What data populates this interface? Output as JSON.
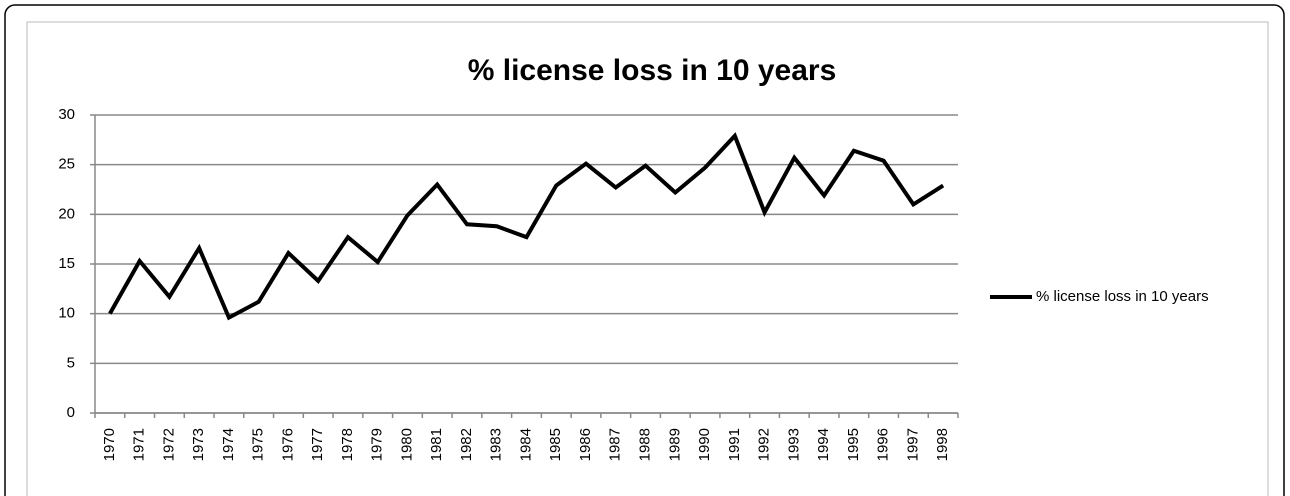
{
  "chart_data": {
    "type": "line",
    "title": "% license loss in 10 years",
    "categories": [
      "1970",
      "1971",
      "1972",
      "1973",
      "1974",
      "1975",
      "1976",
      "1977",
      "1978",
      "1979",
      "1980",
      "1981",
      "1982",
      "1983",
      "1984",
      "1985",
      "1986",
      "1987",
      "1988",
      "1989",
      "1990",
      "1991",
      "1992",
      "1993",
      "1994",
      "1995",
      "1996",
      "1997",
      "1998"
    ],
    "series": [
      {
        "name": "% license loss in 10 years",
        "color": "#000000",
        "values": [
          10,
          15.3,
          11.7,
          16.6,
          9.6,
          11.2,
          16.1,
          13.3,
          17.7,
          15.2,
          19.9,
          23,
          19,
          18.8,
          17.7,
          22.9,
          25.1,
          22.7,
          24.9,
          22.2,
          24.7,
          27.9,
          20.2,
          25.7,
          21.9,
          26.4,
          25.4,
          21,
          22.9
        ]
      }
    ],
    "ylim": [
      0,
      30
    ],
    "yticks": [
      0,
      5,
      10,
      15,
      20,
      25,
      30
    ],
    "grid": true,
    "legend": "right"
  }
}
